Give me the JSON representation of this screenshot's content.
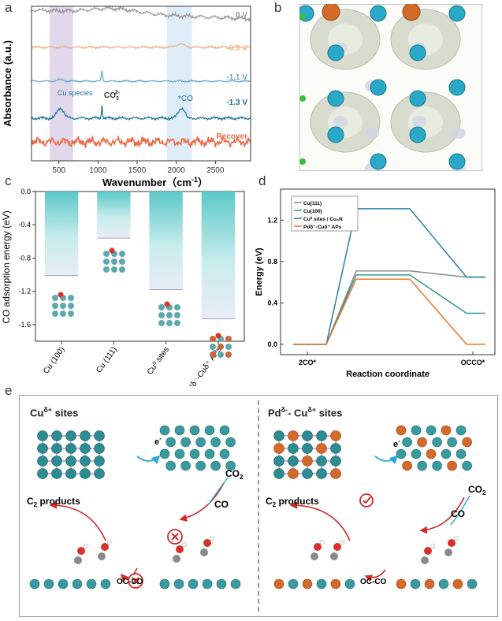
{
  "panel_labels": {
    "a": "a",
    "b": "b",
    "c": "c",
    "d": "d",
    "e": "e"
  },
  "chart_data": [
    {
      "id": "a",
      "type": "line",
      "title": "",
      "xlabel": "Wavenumber（cm",
      "xlabel_sup": "-1",
      "xlabel_close": "）",
      "ylabel": "Absorbance (a.u.)",
      "xlim": [
        150,
        2950
      ],
      "xticks": [
        500,
        1000,
        1500,
        2000,
        2500
      ],
      "series": [
        {
          "name": "0 V",
          "color": "#9a9a9a",
          "offset": 0.0
        },
        {
          "name": "-0.9 V",
          "color": "#f0b08a",
          "offset": 1.0
        },
        {
          "name": "-1.1 V",
          "color": "#6aa8c8",
          "offset": 2.0
        },
        {
          "name": "-1.3 V",
          "color": "#1f6f9a",
          "offset": 3.0
        },
        {
          "name": "Recover",
          "color": "#ee6a4a",
          "offset": 4.0
        }
      ],
      "shaded_bands": [
        {
          "from": 380,
          "to": 680,
          "color": "#d9cfe6"
        },
        {
          "from": 1880,
          "to": 2200,
          "color": "#d6e8f6"
        }
      ],
      "annotations": {
        "cu_species": "Cu species",
        "co3": "CO",
        "co3_sub": "3",
        "co3_sup": "2-",
        "co_ads": "*CO"
      }
    },
    {
      "id": "c",
      "type": "bar",
      "title": "",
      "ylabel": "CO adsorption energy (eV)",
      "ylim": [
        -1.8,
        0.0
      ],
      "yticks": [
        0.0,
        -0.4,
        -0.8,
        -1.2,
        -1.6
      ],
      "categories": [
        "Cu (100)",
        "Cu (111)",
        "Cu⁰ sites",
        "Pdδ⁻-Cuδ⁺ APs"
      ],
      "values": [
        -1.01,
        -0.56,
        -1.18,
        -1.53
      ]
    },
    {
      "id": "d",
      "type": "line",
      "title": "",
      "xlabel": "Reaction coordinate",
      "ylabel": "Energy (eV)",
      "ylim": [
        -0.1,
        1.5
      ],
      "yticks": [
        0.0,
        0.4,
        0.8,
        1.2
      ],
      "xticklabels": [
        "2CO*",
        "OCCO*"
      ],
      "legend_position": "top-left",
      "series": [
        {
          "name": "Cu(111)",
          "color": "#8c8c8c",
          "values": [
            0.0,
            0.0,
            0.71,
            0.71,
            0.65,
            0.65
          ]
        },
        {
          "name": "Cu(100)",
          "color": "#2e9a8a",
          "values": [
            0.0,
            0.0,
            0.67,
            0.67,
            0.3,
            0.3
          ]
        },
        {
          "name": "Cu⁰ sites / Cu₃N",
          "color": "#2a7fa8",
          "values": [
            0.0,
            0.0,
            1.31,
            1.31,
            0.65,
            0.65
          ]
        },
        {
          "name": "Pdδ⁻-Cuδ⁺ APs",
          "color": "#e8782a",
          "values": [
            0.0,
            0.0,
            0.63,
            0.63,
            0.0,
            0.0
          ]
        }
      ]
    }
  ],
  "panel_e": {
    "left_title": "Cu",
    "left_title_sup": "δ+",
    "left_title_rest": " sites",
    "right_title": "Pd",
    "right_title_sup": "δ-",
    "right_title_mid": "- Cu",
    "right_title_sup2": "δ+",
    "right_title_rest": " sites",
    "electron": "e",
    "electron_sup": "-",
    "co2": "CO",
    "co2_sub": "2",
    "co": "CO",
    "c2_products": "C",
    "c2_sub": "2",
    "c2_rest": " products",
    "occo": "OC-CO"
  }
}
